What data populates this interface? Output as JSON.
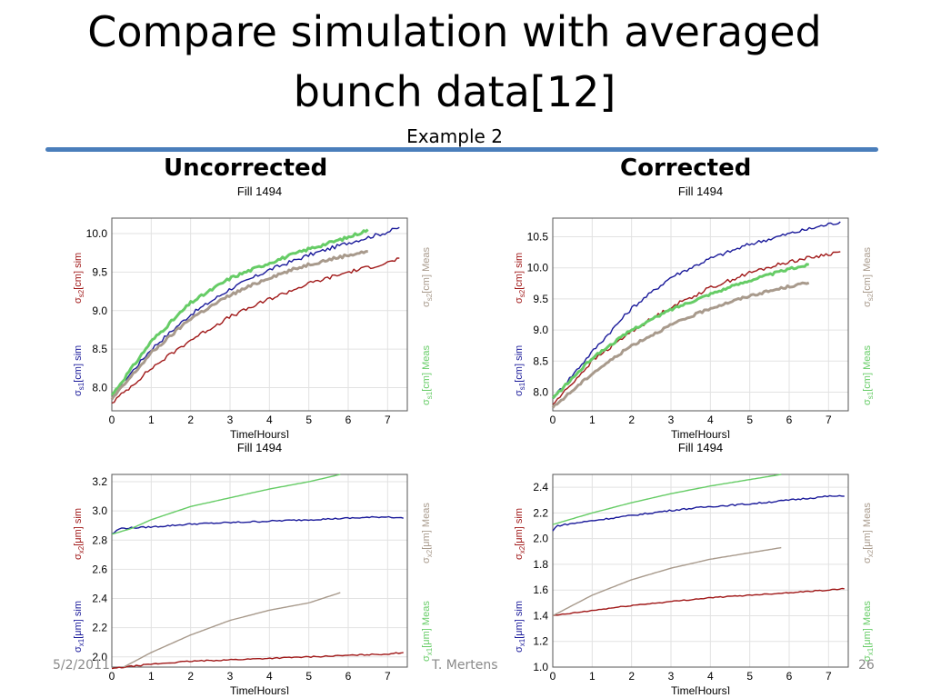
{
  "slide": {
    "title_line1": "Compare simulation with averaged",
    "title_line2": "bunch data[12]",
    "subtitle": "Example 2",
    "heading_left": "Uncorrected",
    "heading_right": "Corrected",
    "footer_date": "5/2/2011",
    "footer_author": "T. Mertens",
    "footer_page": "26"
  },
  "colors": {
    "sim1": "#1a1a9a",
    "sim2": "#a01818",
    "meas1": "#66cc66",
    "meas2": "#a89a8c",
    "accent_rule": "#4a7ebb"
  },
  "chart_data": [
    {
      "type": "line",
      "title": "Fill 1494",
      "panel": "top-left (Uncorrected, bunch length)",
      "xlabel": "Time[Hours]",
      "ylabel_left": [
        "σs1[cm] sim",
        "σs2[cm] sim"
      ],
      "ylabel_right": [
        "σs1[cm] Meas",
        "σs2[cm] Meas"
      ],
      "xlim": [
        0,
        7.5
      ],
      "ylim": [
        7.7,
        10.2
      ],
      "xticks": [
        0,
        1,
        2,
        3,
        4,
        5,
        6,
        7
      ],
      "yticks": [
        8.0,
        8.5,
        9.0,
        9.5,
        10.0
      ],
      "ytick_labels": [
        "8.0",
        "8.5",
        "9.0",
        "9.5",
        "10.0"
      ],
      "grid": true,
      "series": [
        {
          "key": "sim1",
          "noise": 0.025,
          "thick": false,
          "x": [
            0,
            1,
            2,
            3,
            4,
            5,
            6,
            7,
            7.3
          ],
          "y": [
            7.9,
            8.5,
            8.95,
            9.28,
            9.53,
            9.72,
            9.88,
            10.02,
            10.08
          ]
        },
        {
          "key": "sim2",
          "noise": 0.025,
          "thick": false,
          "x": [
            0,
            1,
            2,
            3,
            4,
            5,
            6,
            7,
            7.3
          ],
          "y": [
            7.8,
            8.25,
            8.62,
            8.92,
            9.15,
            9.35,
            9.5,
            9.62,
            9.68
          ]
        },
        {
          "key": "meas1",
          "noise": 0.02,
          "thick": true,
          "x": [
            0,
            1,
            2,
            3,
            4,
            5,
            6,
            6.5
          ],
          "y": [
            7.9,
            8.6,
            9.1,
            9.42,
            9.62,
            9.8,
            9.95,
            10.05
          ]
        },
        {
          "key": "meas2",
          "noise": 0.02,
          "thick": true,
          "x": [
            0,
            1,
            2,
            3,
            4,
            5,
            6,
            6.5
          ],
          "y": [
            7.85,
            8.45,
            8.9,
            9.2,
            9.43,
            9.6,
            9.72,
            9.77
          ]
        }
      ]
    },
    {
      "type": "line",
      "title": "Fill 1494",
      "panel": "top-right (Corrected, bunch length)",
      "xlabel": "Time[Hours]",
      "ylabel_left": [
        "σs1[cm] sim",
        "σs2[cm] sim"
      ],
      "ylabel_right": [
        "σs1[cm] Meas",
        "σs2[cm] Meas"
      ],
      "xlim": [
        0,
        7.5
      ],
      "ylim": [
        7.7,
        10.8
      ],
      "xticks": [
        0,
        1,
        2,
        3,
        4,
        5,
        6,
        7
      ],
      "yticks": [
        8.0,
        8.5,
        9.0,
        9.5,
        10.0,
        10.5
      ],
      "ytick_labels": [
        "8.0",
        "8.5",
        "9.0",
        "9.5",
        "10.0",
        "10.5"
      ],
      "grid": true,
      "series": [
        {
          "key": "sim1",
          "noise": 0.03,
          "thick": false,
          "x": [
            0,
            1,
            2,
            3,
            4,
            5,
            6,
            7,
            7.3
          ],
          "y": [
            7.9,
            8.65,
            9.35,
            9.85,
            10.15,
            10.38,
            10.55,
            10.7,
            10.74
          ]
        },
        {
          "key": "sim2",
          "noise": 0.03,
          "thick": false,
          "x": [
            0,
            1,
            2,
            3,
            4,
            5,
            6,
            7,
            7.3
          ],
          "y": [
            7.8,
            8.5,
            8.98,
            9.37,
            9.68,
            9.92,
            10.1,
            10.22,
            10.26
          ]
        },
        {
          "key": "meas1",
          "noise": 0.02,
          "thick": true,
          "x": [
            0,
            1,
            2,
            3,
            4,
            5,
            6,
            6.5
          ],
          "y": [
            7.9,
            8.55,
            9.0,
            9.33,
            9.58,
            9.8,
            9.98,
            10.05
          ]
        },
        {
          "key": "meas2",
          "noise": 0.02,
          "thick": true,
          "x": [
            0,
            1,
            2,
            3,
            4,
            5,
            6,
            6.5
          ],
          "y": [
            7.75,
            8.3,
            8.75,
            9.08,
            9.35,
            9.55,
            9.7,
            9.76
          ]
        }
      ]
    },
    {
      "type": "line",
      "title": "Fill 1494",
      "panel": "bottom-left (Uncorrected, emittance)",
      "xlabel": "Time[Hours]",
      "ylabel_left": [
        "σx1[μm] sim",
        "σx2[μm] sim"
      ],
      "ylabel_right": [
        "σx1[μm] Meas",
        "σx2[μm] Meas"
      ],
      "xlim": [
        0,
        7.5
      ],
      "ylim": [
        1.93,
        3.25
      ],
      "xticks": [
        0,
        1,
        2,
        3,
        4,
        5,
        6,
        7
      ],
      "yticks": [
        2.0,
        2.2,
        2.4,
        2.6,
        2.8,
        3.0,
        3.2
      ],
      "ytick_labels": [
        "2.0",
        "2.2",
        "2.4",
        "2.6",
        "2.8",
        "3.0",
        "3.2"
      ],
      "grid": true,
      "series": [
        {
          "key": "sim1",
          "noise": 0.005,
          "thick": false,
          "x": [
            0,
            0.2,
            1,
            2,
            3,
            4,
            5,
            6,
            7,
            7.4
          ],
          "y": [
            2.84,
            2.88,
            2.89,
            2.91,
            2.92,
            2.93,
            2.94,
            2.95,
            2.96,
            2.95
          ]
        },
        {
          "key": "sim2",
          "noise": 0.004,
          "thick": false,
          "x": [
            0,
            1,
            2,
            3,
            4,
            5,
            6,
            7,
            7.4
          ],
          "y": [
            1.92,
            1.95,
            1.97,
            1.98,
            1.99,
            2.0,
            2.01,
            2.02,
            2.03
          ]
        },
        {
          "key": "meas1",
          "noise": 0.0,
          "thick": false,
          "x": [
            0,
            0.5,
            1,
            2,
            3,
            4,
            5,
            5.8
          ],
          "y": [
            2.84,
            2.88,
            2.94,
            3.03,
            3.09,
            3.15,
            3.2,
            3.25
          ]
        },
        {
          "key": "meas2",
          "noise": 0.0,
          "thick": false,
          "x": [
            0.3,
            1,
            2,
            3,
            4,
            5,
            5.8
          ],
          "y": [
            1.93,
            2.03,
            2.15,
            2.25,
            2.32,
            2.37,
            2.44
          ]
        }
      ]
    },
    {
      "type": "line",
      "title": "Fill 1494",
      "panel": "bottom-right (Corrected, emittance)",
      "xlabel": "Time[Hours]",
      "ylabel_left": [
        "σx1[μm] sim",
        "σx2[μm] sim"
      ],
      "ylabel_right": [
        "σx1[μm] Meas",
        "σx2[μm] Meas"
      ],
      "xlim": [
        0,
        7.5
      ],
      "ylim": [
        1.0,
        2.5
      ],
      "xticks": [
        0,
        1,
        2,
        3,
        4,
        5,
        6,
        7
      ],
      "yticks": [
        1.0,
        1.2,
        1.4,
        1.6,
        1.8,
        2.0,
        2.2,
        2.4
      ],
      "ytick_labels": [
        "1.0",
        "1.2",
        "1.4",
        "1.6",
        "1.8",
        "2.0",
        "2.2",
        "2.4"
      ],
      "grid": true,
      "series": [
        {
          "key": "sim1",
          "noise": 0.006,
          "thick": false,
          "x": [
            0,
            0.1,
            1,
            2,
            3,
            4,
            5,
            6,
            7,
            7.4
          ],
          "y": [
            2.06,
            2.1,
            2.14,
            2.18,
            2.22,
            2.25,
            2.27,
            2.3,
            2.33,
            2.33
          ]
        },
        {
          "key": "sim2",
          "noise": 0.004,
          "thick": false,
          "x": [
            0,
            1,
            2,
            3,
            4,
            5,
            6,
            7,
            7.4
          ],
          "y": [
            1.4,
            1.44,
            1.48,
            1.51,
            1.54,
            1.56,
            1.58,
            1.6,
            1.61
          ]
        },
        {
          "key": "meas1",
          "noise": 0.0,
          "thick": false,
          "x": [
            0,
            1,
            2,
            3,
            4,
            5,
            5.8
          ],
          "y": [
            2.11,
            2.2,
            2.28,
            2.35,
            2.41,
            2.46,
            2.5
          ]
        },
        {
          "key": "meas2",
          "noise": 0.0,
          "thick": false,
          "x": [
            0,
            1,
            2,
            3,
            4,
            5,
            5.8
          ],
          "y": [
            1.4,
            1.56,
            1.68,
            1.77,
            1.84,
            1.89,
            1.93
          ]
        }
      ]
    }
  ]
}
